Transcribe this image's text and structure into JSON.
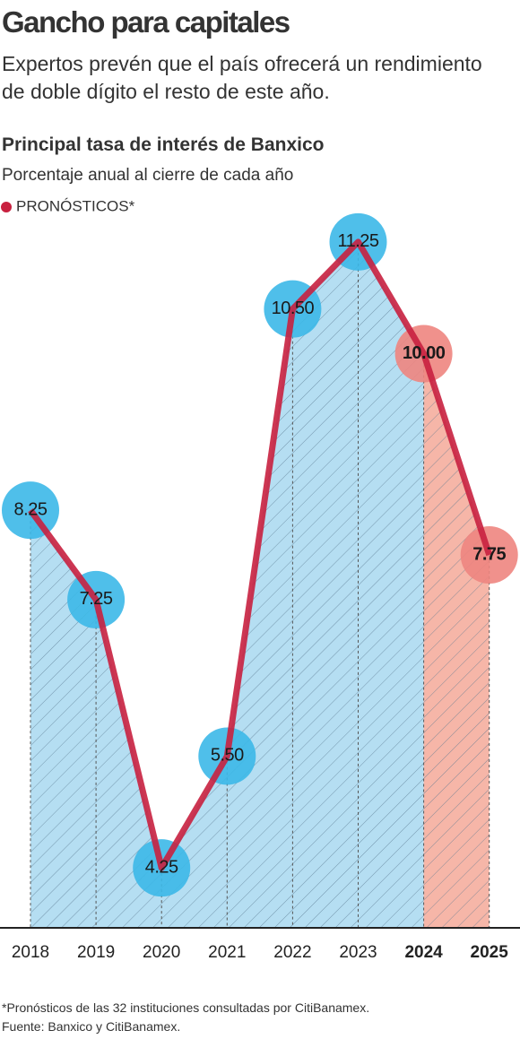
{
  "title": "Gancho para capitales",
  "subtitle": "Expertos prevén que el país ofrecerá un rendimiento de doble dígito el resto de este año.",
  "chart_data": {
    "type": "area-line",
    "title": "Principal tasa de interés de Banxico",
    "subtitle": "Porcentaje anual al cierre de cada año",
    "legend": "PRONÓSTICOS*",
    "categories": [
      "2018",
      "2019",
      "2020",
      "2021",
      "2022",
      "2023",
      "2024",
      "2025"
    ],
    "values": [
      8.25,
      7.25,
      4.25,
      5.5,
      10.5,
      11.25,
      10.0,
      7.75
    ],
    "value_labels": [
      "8.25",
      "7.25",
      "4.25",
      "5.50",
      "10.50",
      "11.25",
      "10.00",
      "7.75"
    ],
    "forecast": [
      false,
      false,
      false,
      false,
      false,
      false,
      true,
      true
    ],
    "ylim": [
      3.58,
      11.8
    ],
    "line_color": "#c8203f",
    "marker_color": "#3cb8e8",
    "forecast_marker_color": "#ee8580",
    "area_color": "#b5def2",
    "forecast_area_color": "#f6b6a8"
  },
  "notes": [
    "*Pronósticos de las 32 instituciones consultadas por CitiBanamex.",
    "Fuente: Banxico y CitiBanamex."
  ]
}
